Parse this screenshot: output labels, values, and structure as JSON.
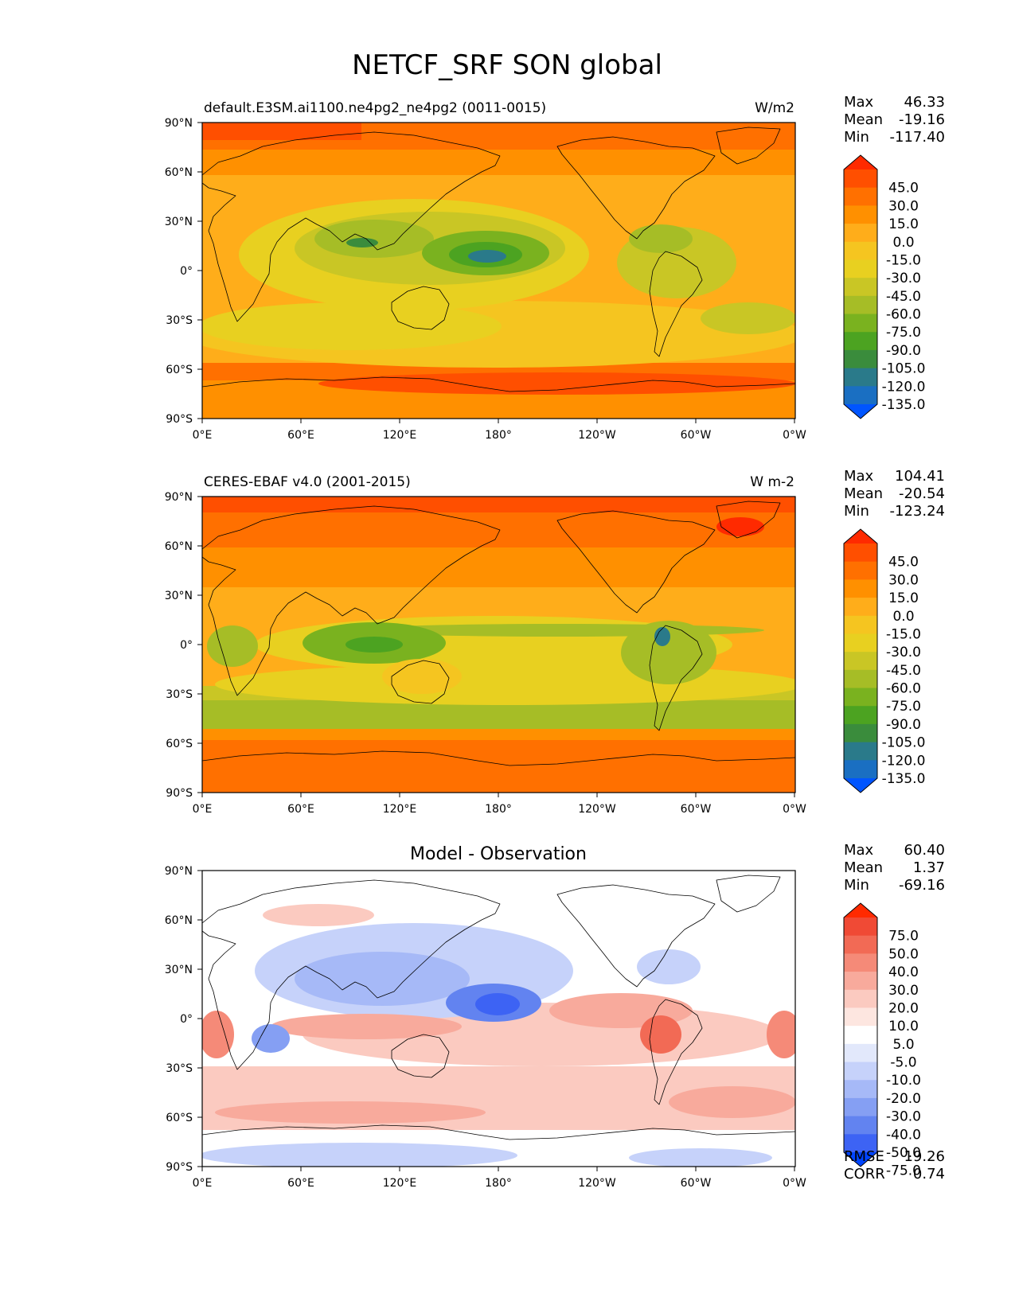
{
  "figure": {
    "title": "NETCF_SRF SON global"
  },
  "axes": {
    "lat_ticks": [
      "90°N",
      "60°N",
      "30°N",
      "0°",
      "30°S",
      "60°S",
      "90°S"
    ],
    "lon_ticks": [
      "0°E",
      "60°E",
      "120°E",
      "180°",
      "120°W",
      "60°W",
      "0°W"
    ]
  },
  "panels": [
    {
      "left_title": "default.E3SM.ai1100.ne4pg2_ne4pg2 (0011-0015)",
      "right_title": "W/m2",
      "center_title": "",
      "stats": {
        "max_label": "Max",
        "max": "46.33",
        "mean_label": "Mean",
        "mean": "-19.16",
        "min_label": "Min",
        "min": "-117.40"
      },
      "colorbar": {
        "labels": [
          "45.0",
          "30.0",
          "15.0",
          "0.0",
          "-15.0",
          "-30.0",
          "-45.0",
          "-60.0",
          "-75.0",
          "-90.0",
          "-105.0",
          "-120.0",
          "-135.0"
        ],
        "colors": [
          "#ff2a00",
          "#ff4f00",
          "#ff7000",
          "#ff9000",
          "#ffad1a",
          "#f5c520",
          "#e8d020",
          "#c9c625",
          "#a6bd26",
          "#7ab21f",
          "#4ca321",
          "#3a8c3c",
          "#2a7a8a",
          "#1a6fc2",
          "#0055ff"
        ]
      },
      "field": "model"
    },
    {
      "left_title": "CERES-EBAF v4.0 (2001-2015)",
      "right_title": "W m-2",
      "center_title": "",
      "stats": {
        "max_label": "Max",
        "max": "104.41",
        "mean_label": "Mean",
        "mean": "-20.54",
        "min_label": "Min",
        "min": "-123.24"
      },
      "colorbar": {
        "labels": [
          "45.0",
          "30.0",
          "15.0",
          "0.0",
          "-15.0",
          "-30.0",
          "-45.0",
          "-60.0",
          "-75.0",
          "-90.0",
          "-105.0",
          "-120.0",
          "-135.0"
        ],
        "colors": [
          "#ff2a00",
          "#ff4f00",
          "#ff7000",
          "#ff9000",
          "#ffad1a",
          "#f5c520",
          "#e8d020",
          "#c9c625",
          "#a6bd26",
          "#7ab21f",
          "#4ca321",
          "#3a8c3c",
          "#2a7a8a",
          "#1a6fc2",
          "#0055ff"
        ]
      },
      "field": "obs"
    },
    {
      "left_title": "",
      "right_title": "",
      "center_title": "Model - Observation",
      "stats": {
        "max_label": "Max",
        "max": "60.40",
        "mean_label": "Mean",
        "mean": "1.37",
        "min_label": "Min",
        "min": "-69.16"
      },
      "colorbar": {
        "labels": [
          "75.0",
          "50.0",
          "40.0",
          "30.0",
          "20.0",
          "10.0",
          "5.0",
          "-5.0",
          "-10.0",
          "-20.0",
          "-30.0",
          "-40.0",
          "-50.0",
          "-75.0"
        ],
        "colors": [
          "#ff2a00",
          "#f04a35",
          "#f26a55",
          "#f58a78",
          "#f8aa9c",
          "#fbcac0",
          "#fde6e0",
          "#ffffff",
          "#e2e8fb",
          "#c6d2fa",
          "#a6b9f7",
          "#859ff3",
          "#6283f0",
          "#3d63f4",
          "#0044ff"
        ]
      },
      "field": "diff",
      "metrics": {
        "rmse_label": "RMSE",
        "rmse": "19.26",
        "corr_label": "CORR",
        "corr": "0.74"
      }
    }
  ]
}
